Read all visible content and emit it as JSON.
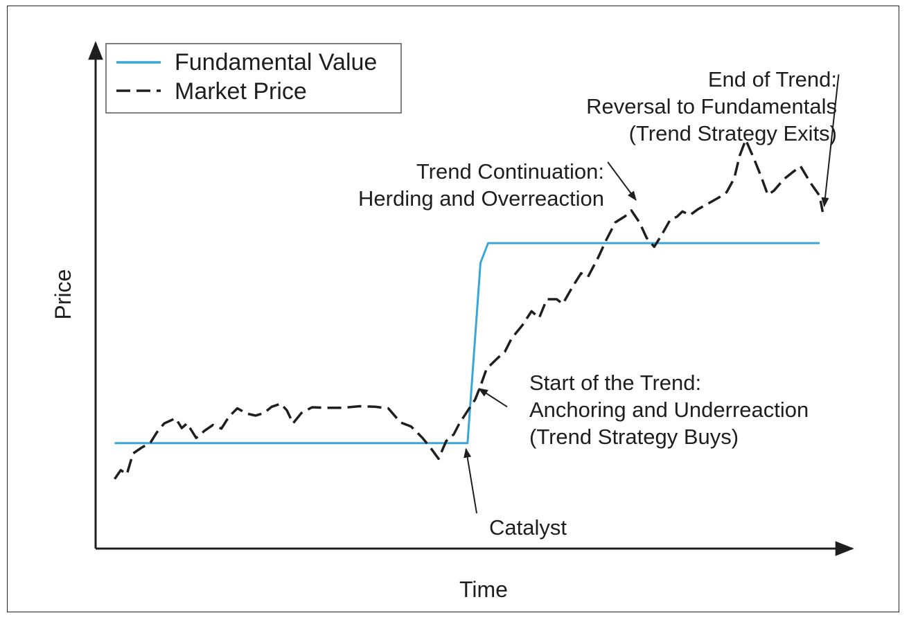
{
  "chart_data": {
    "type": "line",
    "xlabel": "Time",
    "ylabel": "Price",
    "grid": false,
    "legend_position": "top-left",
    "legend": [
      {
        "label": "Fundamental Value",
        "color": "#3aa6d6",
        "style": "solid"
      },
      {
        "label": "Market Price",
        "color": "#1e1e1e",
        "style": "dashed"
      }
    ],
    "xlim": [
      0,
      100
    ],
    "ylim": [
      0,
      100
    ],
    "series": [
      {
        "key": "fundamental",
        "name": "Fundamental Value",
        "points": [
          [
            2.5,
            20.3
          ],
          [
            48.8,
            20.3
          ],
          [
            50.5,
            55.0
          ],
          [
            51.5,
            58.8
          ],
          [
            95.0,
            58.8
          ]
        ]
      },
      {
        "key": "market",
        "name": "Market Price",
        "points": [
          [
            2.5,
            13.4
          ],
          [
            3.3,
            15.1
          ],
          [
            4.1,
            14.3
          ],
          [
            4.9,
            18.3
          ],
          [
            6.0,
            19.4
          ],
          [
            7.2,
            20.4
          ],
          [
            8.0,
            22.3
          ],
          [
            9.0,
            24.1
          ],
          [
            10.5,
            25.1
          ],
          [
            11.3,
            23.2
          ],
          [
            12.0,
            24.1
          ],
          [
            13.2,
            21.3
          ],
          [
            14.3,
            22.7
          ],
          [
            15.4,
            23.8
          ],
          [
            16.5,
            23.1
          ],
          [
            17.5,
            25.4
          ],
          [
            18.6,
            27.0
          ],
          [
            19.8,
            26.0
          ],
          [
            21.0,
            25.6
          ],
          [
            22.1,
            26.1
          ],
          [
            23.1,
            27.3
          ],
          [
            24.3,
            27.9
          ],
          [
            25.1,
            26.6
          ],
          [
            25.9,
            24.1
          ],
          [
            27.0,
            26.1
          ],
          [
            28.4,
            27.2
          ],
          [
            30.3,
            27.1
          ],
          [
            32.4,
            27.1
          ],
          [
            34.6,
            27.4
          ],
          [
            36.7,
            27.3
          ],
          [
            38.4,
            27.0
          ],
          [
            40.0,
            24.3
          ],
          [
            41.4,
            23.5
          ],
          [
            42.9,
            21.3
          ],
          [
            44.0,
            19.3
          ],
          [
            45.0,
            17.3
          ],
          [
            46.0,
            20.7
          ],
          [
            47.0,
            22.0
          ],
          [
            47.7,
            24.0
          ],
          [
            48.8,
            26.5
          ],
          [
            49.8,
            28.7
          ],
          [
            50.5,
            31.3
          ],
          [
            51.3,
            34.6
          ],
          [
            52.7,
            36.6
          ],
          [
            53.7,
            37.9
          ],
          [
            54.6,
            40.5
          ],
          [
            56.0,
            43.0
          ],
          [
            57.2,
            45.7
          ],
          [
            58.2,
            44.4
          ],
          [
            59.2,
            48.0
          ],
          [
            60.5,
            48.0
          ],
          [
            61.3,
            47.1
          ],
          [
            62.5,
            50.2
          ],
          [
            63.7,
            53.0
          ],
          [
            64.6,
            52.3
          ],
          [
            66.0,
            56.2
          ],
          [
            67.0,
            59.4
          ],
          [
            68.2,
            62.8
          ],
          [
            69.5,
            64.0
          ],
          [
            70.3,
            65.1
          ],
          [
            71.4,
            62.7
          ],
          [
            72.3,
            59.8
          ],
          [
            73.3,
            58.1
          ],
          [
            74.2,
            60.2
          ],
          [
            75.4,
            63.3
          ],
          [
            76.3,
            63.9
          ],
          [
            77.0,
            64.9
          ],
          [
            78.0,
            64.2
          ],
          [
            79.0,
            65.3
          ],
          [
            80.6,
            66.6
          ],
          [
            81.8,
            67.6
          ],
          [
            82.8,
            68.6
          ],
          [
            83.8,
            71.3
          ],
          [
            84.5,
            75.6
          ],
          [
            85.3,
            78.7
          ],
          [
            86.4,
            75.0
          ],
          [
            87.3,
            71.7
          ],
          [
            88.2,
            68.1
          ],
          [
            89.0,
            68.9
          ],
          [
            90.3,
            71.1
          ],
          [
            91.5,
            72.5
          ],
          [
            92.5,
            73.6
          ],
          [
            93.8,
            70.4
          ],
          [
            95.0,
            67.9
          ],
          [
            95.4,
            64.8
          ]
        ]
      }
    ]
  },
  "annotations": [
    {
      "key": "catalyst",
      "lines": [
        "Catalyst"
      ],
      "align": "start",
      "arrow_from": [
        50.0,
        6.8
      ],
      "arrow_to": [
        48.6,
        19.2
      ]
    },
    {
      "key": "start_of_trend",
      "lines": [
        "Start of the Trend:",
        "Anchoring and Underreaction",
        "(Trend Strategy Buys)"
      ],
      "align": "start",
      "arrow_from": [
        54.0,
        27.3
      ],
      "arrow_to": [
        50.3,
        30.8
      ]
    },
    {
      "key": "trend_continuation",
      "lines": [
        "Trend Continuation:",
        "Herding and Overreaction"
      ],
      "align": "end",
      "arrow_from": [
        67.2,
        74.4
      ],
      "arrow_to": [
        70.9,
        67.1
      ]
    },
    {
      "key": "end_of_trend",
      "lines": [
        "End of Trend:",
        "Reversal to Fundamentals",
        "(Trend Strategy Exits)"
      ],
      "align": "end",
      "arrow_from": [
        97.5,
        91.3
      ],
      "arrow_to": [
        95.6,
        65.9
      ]
    }
  ]
}
